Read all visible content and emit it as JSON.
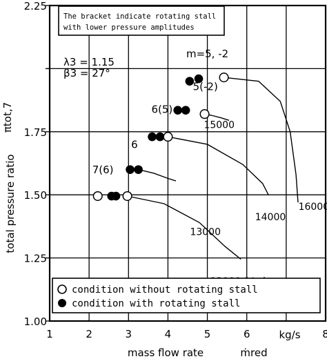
{
  "chart_data": {
    "type": "scatter",
    "title": "",
    "xlabel": "mass flow rate",
    "xlabel_symbol": "ṁred",
    "xunit": "kg/s",
    "ylabel": "total pressure ratio",
    "ylabel_symbol": "πtot,7",
    "xlim": [
      1,
      8
    ],
    "ylim": [
      1.0,
      2.25
    ],
    "xticks": [
      "1",
      "2",
      "3",
      "4",
      "5",
      "6",
      "",
      "8"
    ],
    "yticks": [
      "1.00",
      "1.25",
      "1.50",
      "1.75",
      "",
      "2.25"
    ],
    "grid": true,
    "note": [
      "The bracket  indicate  rotating stall",
      "with lower pressure amplitudes"
    ],
    "params": [
      "λ3 = 1.15",
      "β3 = 27°"
    ],
    "legend": {
      "placement": "bottom",
      "entries": [
        {
          "marker": "open-circle",
          "label": "condition without rotating stall"
        },
        {
          "marker": "filled-circle",
          "label": "condition with rotating stall"
        }
      ]
    },
    "series": [
      {
        "name": "12000 1/min",
        "label_parts": [
          "n",
          "red",
          " = 12000 1/min"
        ],
        "no_stall": [
          {
            "x": 2.22,
            "y": 1.495
          },
          {
            "x": 2.97,
            "y": 1.495
          }
        ],
        "stall": [
          {
            "x": 2.57,
            "y": 1.495
          },
          {
            "x": 2.68,
            "y": 1.495
          }
        ],
        "stall_mode": "7(6)",
        "curve": [
          [
            2.97,
            1.495
          ],
          [
            3.9,
            1.465
          ],
          [
            4.8,
            1.39
          ],
          [
            5.45,
            1.295
          ],
          [
            5.85,
            1.245
          ]
        ]
      },
      {
        "name": "13000",
        "label_parts": [
          "13000"
        ],
        "no_stall": [],
        "stall": [
          {
            "x": 3.04,
            "y": 1.6
          },
          {
            "x": 3.25,
            "y": 1.6
          }
        ],
        "stall_mode": "6",
        "curve": [
          [
            3.25,
            1.6
          ],
          [
            3.65,
            1.585
          ],
          [
            4.0,
            1.565
          ],
          [
            4.2,
            1.555
          ]
        ]
      },
      {
        "name": "14000",
        "label_parts": [
          "14000"
        ],
        "no_stall": [
          {
            "x": 4.0,
            "y": 1.73
          }
        ],
        "stall": [
          {
            "x": 3.6,
            "y": 1.73
          },
          {
            "x": 3.8,
            "y": 1.73
          }
        ],
        "stall_mode": "6(5)",
        "curve": [
          [
            4.0,
            1.73
          ],
          [
            5.0,
            1.7
          ],
          [
            5.9,
            1.62
          ],
          [
            6.4,
            1.545
          ],
          [
            6.55,
            1.5
          ]
        ]
      },
      {
        "name": "15000",
        "label_parts": [
          "15000"
        ],
        "no_stall": [
          {
            "x": 4.93,
            "y": 1.82
          }
        ],
        "stall": [
          {
            "x": 4.25,
            "y": 1.835
          },
          {
            "x": 4.45,
            "y": 1.835
          }
        ],
        "stall_mode": "5(-2)",
        "curve": [
          [
            4.93,
            1.82
          ],
          [
            5.1,
            1.815
          ],
          [
            5.35,
            1.805
          ],
          [
            5.55,
            1.795
          ]
        ]
      },
      {
        "name": "16000",
        "label_parts": [
          "16000"
        ],
        "no_stall": [
          {
            "x": 5.42,
            "y": 1.965
          }
        ],
        "stall": [
          {
            "x": 4.55,
            "y": 1.95
          },
          {
            "x": 4.78,
            "y": 1.96
          }
        ],
        "stall_mode": "m=5, -2",
        "curve": [
          [
            5.42,
            1.965
          ],
          [
            6.3,
            1.95
          ],
          [
            6.85,
            1.87
          ],
          [
            7.1,
            1.75
          ],
          [
            7.25,
            1.58
          ],
          [
            7.3,
            1.47
          ]
        ]
      }
    ]
  }
}
